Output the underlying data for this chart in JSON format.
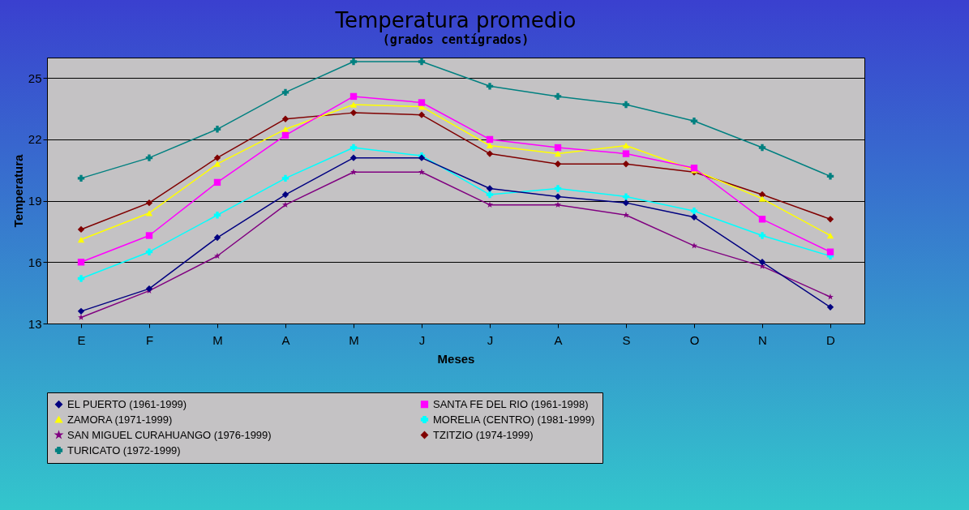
{
  "chart_data": {
    "type": "line",
    "title": "Temperatura promedio",
    "subtitle": "(grados centígrados)",
    "xlabel": "Meses",
    "ylabel": "Temperatura",
    "categories": [
      "E",
      "F",
      "M",
      "A",
      "M",
      "J",
      "J",
      "A",
      "S",
      "O",
      "N",
      "D"
    ],
    "ylim": [
      13,
      26
    ],
    "yticks": [
      13,
      16,
      19,
      22,
      25
    ],
    "grid": "y",
    "legend": "bottom",
    "series": [
      {
        "name": "EL PUERTO (1961-1999)",
        "color": "#000080",
        "marker": "diamond",
        "values": [
          13.6,
          14.7,
          17.2,
          19.3,
          21.1,
          21.1,
          19.6,
          19.2,
          18.9,
          18.2,
          16.0,
          13.8
        ]
      },
      {
        "name": "SANTA FE DEL RIO (1961-1998)",
        "color": "#ff00ff",
        "marker": "square",
        "values": [
          16.0,
          17.3,
          19.9,
          22.2,
          24.1,
          23.8,
          22.0,
          21.6,
          21.3,
          20.6,
          18.1,
          16.5
        ]
      },
      {
        "name": "ZAMORA (1971-1999)",
        "color": "#ffff00",
        "marker": "triangle",
        "values": [
          17.1,
          18.4,
          20.8,
          22.5,
          23.7,
          23.6,
          21.7,
          21.3,
          21.7,
          20.5,
          19.1,
          17.3
        ]
      },
      {
        "name": "MORELIA (CENTRO) (1981-1999)",
        "color": "#00ffff",
        "marker": "cross",
        "values": [
          15.2,
          16.5,
          18.3,
          20.1,
          21.6,
          21.2,
          19.3,
          19.6,
          19.2,
          18.5,
          17.3,
          16.3
        ]
      },
      {
        "name": "SAN MIGUEL CURAHUANGO (1976-1999)",
        "color": "#800080",
        "marker": "star",
        "values": [
          13.3,
          14.6,
          16.3,
          18.8,
          20.4,
          20.4,
          18.8,
          18.8,
          18.3,
          16.8,
          15.8,
          14.3
        ]
      },
      {
        "name": "TZITZIO (1974-1999)",
        "color": "#800000",
        "marker": "diamond",
        "values": [
          17.6,
          18.9,
          21.1,
          23.0,
          23.3,
          23.2,
          21.3,
          20.8,
          20.8,
          20.4,
          19.3,
          18.1
        ]
      },
      {
        "name": "TURICATO (1972-1999)",
        "color": "#008080",
        "marker": "cross",
        "values": [
          20.1,
          21.1,
          22.5,
          24.3,
          25.8,
          25.8,
          24.6,
          24.1,
          23.7,
          22.9,
          21.6,
          20.2
        ]
      }
    ]
  }
}
